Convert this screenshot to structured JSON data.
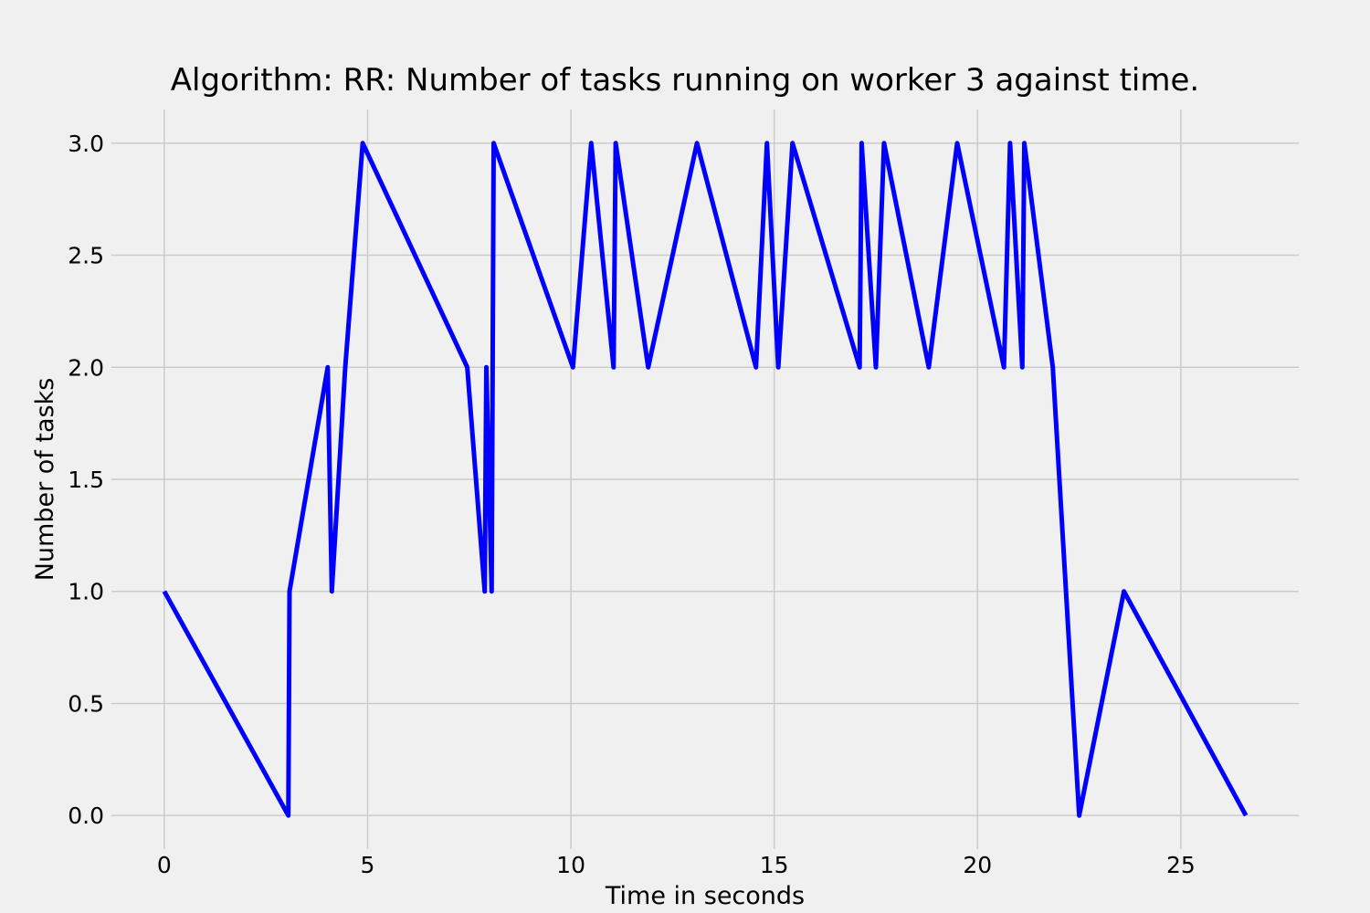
{
  "chart_data": {
    "type": "line",
    "title": "Algorithm: RR: Number of tasks running on worker 3 against time.",
    "xlabel": "Time in seconds",
    "ylabel": "Number of tasks",
    "xlim": [
      -1.3,
      27.9
    ],
    "ylim": [
      -0.15,
      3.15
    ],
    "xticks": [
      0,
      5,
      10,
      15,
      20,
      25
    ],
    "xtick_labels": [
      "0",
      "5",
      "10",
      "15",
      "20",
      "25"
    ],
    "yticks": [
      0.0,
      0.5,
      1.0,
      1.5,
      2.0,
      2.5,
      3.0
    ],
    "ytick_labels": [
      "0.0",
      "0.5",
      "1.0",
      "1.5",
      "2.0",
      "2.5",
      "3.0"
    ],
    "grid": true,
    "series": [
      {
        "color": "#0000ff",
        "x": [
          0,
          3.05,
          3.08,
          4.02,
          4.12,
          4.45,
          4.88,
          7.45,
          7.88,
          7.92,
          8.05,
          8.1,
          10.05,
          10.5,
          11.05,
          11.1,
          11.9,
          13.1,
          14.55,
          14.82,
          15.1,
          15.45,
          17.1,
          17.15,
          17.5,
          17.7,
          18.8,
          19.5,
          20.65,
          20.8,
          21.1,
          21.15,
          21.85,
          22.5,
          23.6,
          26.6
        ],
        "y": [
          1,
          0,
          1,
          2,
          1,
          2,
          3,
          2,
          1,
          2,
          1,
          3,
          2,
          3,
          2,
          3,
          2,
          3,
          2,
          3,
          2,
          3,
          2,
          3,
          2,
          3,
          2,
          3,
          2,
          3,
          2,
          3,
          2,
          0,
          1,
          0
        ]
      }
    ]
  }
}
